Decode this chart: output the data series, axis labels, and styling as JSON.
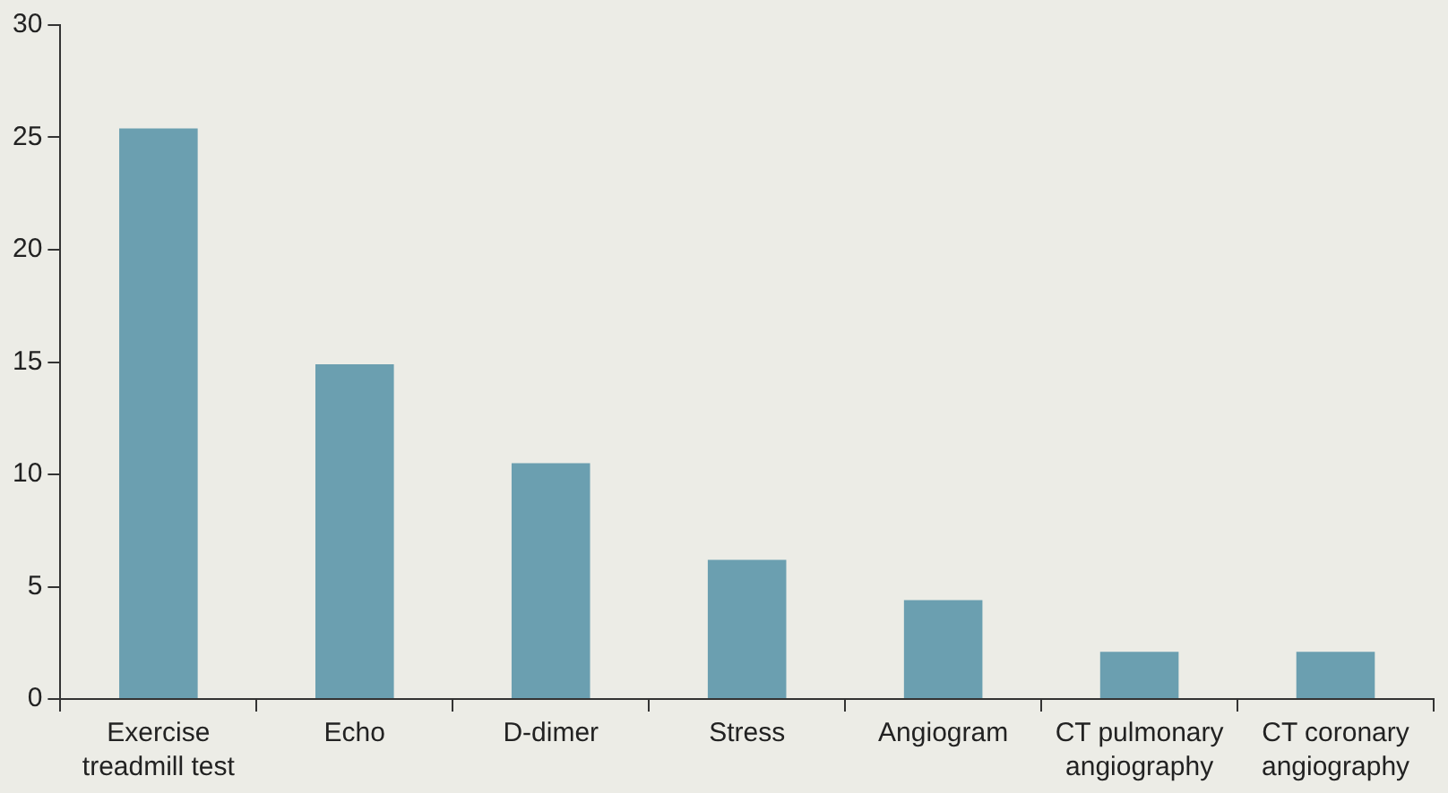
{
  "chart_data": {
    "type": "bar",
    "categories": [
      "Exercise treadmill test",
      "Echo",
      "D-dimer",
      "Stress",
      "Angiogram",
      "CT pulmonary angiography",
      "CT coronary angiography"
    ],
    "values": [
      25.4,
      14.9,
      10.5,
      6.2,
      4.4,
      2.1,
      2.1
    ],
    "color": "#6b9fb0",
    "ylim": [
      0,
      30
    ],
    "yticks": [
      0,
      5,
      10,
      15,
      20,
      25,
      30
    ],
    "grid": false,
    "legend": false
  }
}
